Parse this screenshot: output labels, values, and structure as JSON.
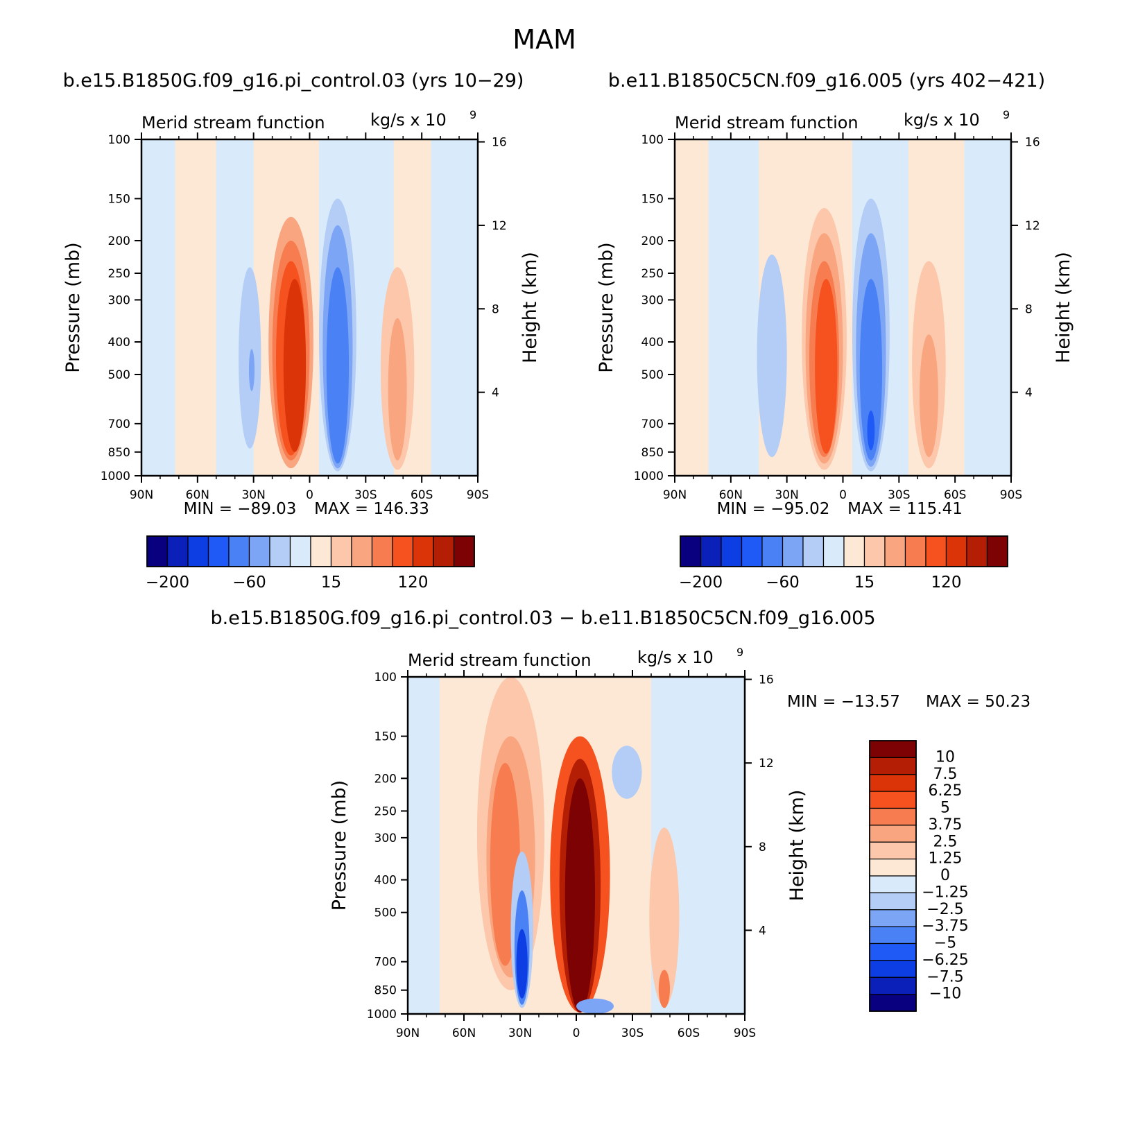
{
  "main_title": "MAM",
  "colors": {
    "pal": [
      "#08007e",
      "#0a20b8",
      "#0c3ee3",
      "#1f5af6",
      "#4a82f6",
      "#7da5f5",
      "#b3cdf6",
      "#d9ebfa",
      "#fde8d6",
      "#fcc7aa",
      "#f9a57f",
      "#f77d50",
      "#f5521f",
      "#db3408",
      "#b31e05",
      "#7d0203"
    ]
  },
  "chart_data": [
    {
      "type": "heatmap",
      "title": "b.e15.B1850G.f09_g16.pi_control.03 (yrs 10−29)",
      "left_label": "Merid stream function",
      "right_label_base": "kg/s x 10",
      "right_label_exp": "9",
      "xlabel": "",
      "ylabel": "Pressure (mb)",
      "y2label": "Height (km)",
      "x_ticks": [
        "90N",
        "60N",
        "30N",
        "0",
        "30S",
        "60S",
        "90S"
      ],
      "x_tick_values": [
        90,
        60,
        30,
        0,
        -30,
        -60,
        -90
      ],
      "y_ticks": [
        "100",
        "150",
        "200",
        "250",
        "300",
        "400",
        "500",
        "700",
        "850",
        "1000"
      ],
      "y_tick_values": [
        100,
        150,
        200,
        250,
        300,
        400,
        500,
        700,
        850,
        1000
      ],
      "y2_ticks": [
        "16",
        "12",
        "8",
        "4"
      ],
      "y2_tick_values": [
        16,
        12,
        8,
        4
      ],
      "y_scale": "log",
      "min_label": "MIN = −89.03",
      "max_label": "MAX = 146.33",
      "min": -89.03,
      "max": 146.33,
      "colorbar_labels": [
        "−200",
        "−60",
        "15",
        "120"
      ],
      "features": [
        {
          "lat": 32,
          "p_top": 240,
          "p_bot": 830,
          "width": 6,
          "level": 6
        },
        {
          "lat": 31,
          "p_top": 420,
          "p_bot": 560,
          "width": 1.5,
          "level": 5
        },
        {
          "lat": 10,
          "p_top": 170,
          "p_bot": 950,
          "width": 12,
          "level": 10
        },
        {
          "lat": 10,
          "p_top": 200,
          "p_bot": 900,
          "width": 10,
          "level": 11
        },
        {
          "lat": 10,
          "p_top": 230,
          "p_bot": 870,
          "width": 8,
          "level": 12
        },
        {
          "lat": 8,
          "p_top": 260,
          "p_bot": 850,
          "width": 6,
          "level": 13
        },
        {
          "lat": -15,
          "p_top": 150,
          "p_bot": 970,
          "width": 10,
          "level": 6
        },
        {
          "lat": -15,
          "p_top": 180,
          "p_bot": 950,
          "width": 8,
          "level": 5
        },
        {
          "lat": -15,
          "p_top": 240,
          "p_bot": 920,
          "width": 6,
          "level": 4
        },
        {
          "lat": -47,
          "p_top": 240,
          "p_bot": 960,
          "width": 9,
          "level": 9
        },
        {
          "lat": -47,
          "p_top": 340,
          "p_bot": 900,
          "width": 5,
          "level": 10
        }
      ]
    },
    {
      "type": "heatmap",
      "title": "b.e11.B1850C5CN.f09_g16.005 (yrs 402−421)",
      "left_label": "Merid stream function",
      "right_label_base": "kg/s x 10",
      "right_label_exp": "9",
      "xlabel": "",
      "ylabel": "Pressure (mb)",
      "y2label": "Height (km)",
      "x_ticks": [
        "90N",
        "60N",
        "30N",
        "0",
        "30S",
        "60S",
        "90S"
      ],
      "x_tick_values": [
        90,
        60,
        30,
        0,
        -30,
        -60,
        -90
      ],
      "y_ticks": [
        "100",
        "150",
        "200",
        "250",
        "300",
        "400",
        "500",
        "700",
        "850",
        "1000"
      ],
      "y_tick_values": [
        100,
        150,
        200,
        250,
        300,
        400,
        500,
        700,
        850,
        1000
      ],
      "y2_ticks": [
        "16",
        "12",
        "8",
        "4"
      ],
      "y2_tick_values": [
        16,
        12,
        8,
        4
      ],
      "y_scale": "log",
      "min_label": "MIN = −95.02",
      "max_label": "MAX = 115.41",
      "min": -95.02,
      "max": 115.41,
      "colorbar_labels": [
        "−200",
        "−60",
        "15",
        "120"
      ],
      "features": [
        {
          "lat": 38,
          "p_top": 220,
          "p_bot": 880,
          "width": 8,
          "level": 6
        },
        {
          "lat": 10,
          "p_top": 160,
          "p_bot": 960,
          "width": 12,
          "level": 9
        },
        {
          "lat": 10,
          "p_top": 190,
          "p_bot": 920,
          "width": 10,
          "level": 10
        },
        {
          "lat": 10,
          "p_top": 230,
          "p_bot": 880,
          "width": 8,
          "level": 11
        },
        {
          "lat": 9,
          "p_top": 260,
          "p_bot": 860,
          "width": 6,
          "level": 12
        },
        {
          "lat": -15,
          "p_top": 150,
          "p_bot": 970,
          "width": 10,
          "level": 6
        },
        {
          "lat": -15,
          "p_top": 190,
          "p_bot": 940,
          "width": 8,
          "level": 5
        },
        {
          "lat": -15,
          "p_top": 260,
          "p_bot": 900,
          "width": 6,
          "level": 4
        },
        {
          "lat": -15,
          "p_top": 640,
          "p_bot": 840,
          "width": 2,
          "level": 3
        },
        {
          "lat": -46,
          "p_top": 230,
          "p_bot": 950,
          "width": 9,
          "level": 9
        },
        {
          "lat": -46,
          "p_top": 380,
          "p_bot": 880,
          "width": 5,
          "level": 10
        }
      ]
    },
    {
      "type": "heatmap",
      "title": "b.e15.B1850G.f09_g16.pi_control.03 − b.e11.B1850C5CN.f09_g16.005",
      "left_label": "Merid stream function",
      "right_label_base": "kg/s x 10",
      "right_label_exp": "9",
      "xlabel": "",
      "ylabel": "Pressure (mb)",
      "y2label": "Height (km)",
      "x_ticks": [
        "90N",
        "60N",
        "30N",
        "0",
        "30S",
        "60S",
        "90S"
      ],
      "x_tick_values": [
        90,
        60,
        30,
        0,
        -30,
        -60,
        -90
      ],
      "y_ticks": [
        "100",
        "150",
        "200",
        "250",
        "300",
        "400",
        "500",
        "700",
        "850",
        "1000"
      ],
      "y_tick_values": [
        100,
        150,
        200,
        250,
        300,
        400,
        500,
        700,
        850,
        1000
      ],
      "y2_ticks": [
        "16",
        "12",
        "8",
        "4"
      ],
      "y2_tick_values": [
        16,
        12,
        8,
        4
      ],
      "y_scale": "log",
      "min_label": "MIN = −13.57",
      "max_label": "MAX = 50.23",
      "min": -13.57,
      "max": 50.23,
      "colorbar_labels": [
        "10",
        "7.5",
        "6.25",
        "5",
        "3.75",
        "2.5",
        "1.25",
        "0",
        "−1.25",
        "−2.5",
        "−3.75",
        "−5",
        "−6.25",
        "−7.5",
        "−10"
      ],
      "features": [
        {
          "lat": 35,
          "p_top": 100,
          "p_bot": 850,
          "width": 18,
          "level": 9
        },
        {
          "lat": 35,
          "p_top": 150,
          "p_bot": 780,
          "width": 13,
          "level": 10
        },
        {
          "lat": 38,
          "p_top": 180,
          "p_bot": 720,
          "width": 8,
          "level": 11
        },
        {
          "lat": 29,
          "p_top": 330,
          "p_bot": 960,
          "width": 6,
          "level": 6
        },
        {
          "lat": 29,
          "p_top": 430,
          "p_bot": 940,
          "width": 4,
          "level": 4
        },
        {
          "lat": 29,
          "p_top": 560,
          "p_bot": 900,
          "width": 3,
          "level": 2
        },
        {
          "lat": -2,
          "p_top": 150,
          "p_bot": 990,
          "width": 16,
          "level": 12
        },
        {
          "lat": -2,
          "p_top": 175,
          "p_bot": 990,
          "width": 11,
          "level": 14
        },
        {
          "lat": -2,
          "p_top": 200,
          "p_bot": 990,
          "width": 8,
          "level": 15
        },
        {
          "lat": -10,
          "p_top": 900,
          "p_bot": 1000,
          "width": 10,
          "level": 5
        },
        {
          "lat": -27,
          "p_top": 160,
          "p_bot": 230,
          "width": 8,
          "level": 6
        },
        {
          "lat": -47,
          "p_top": 280,
          "p_bot": 950,
          "width": 8,
          "level": 9
        },
        {
          "lat": -47,
          "p_top": 740,
          "p_bot": 960,
          "width": 3,
          "level": 11
        }
      ]
    }
  ]
}
